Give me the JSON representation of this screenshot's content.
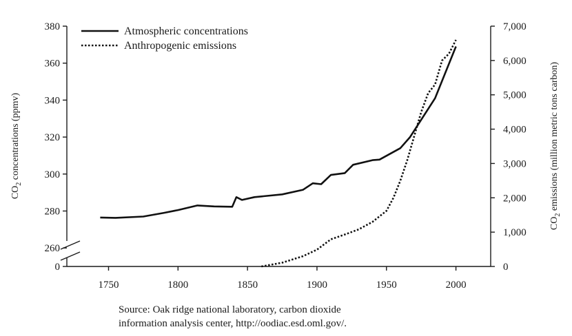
{
  "chart_data": {
    "type": "line",
    "x_ticks": [
      "1750",
      "1800",
      "1850",
      "1900",
      "1950",
      "2000"
    ],
    "xlim": [
      1720,
      2025
    ],
    "left_axis": {
      "label_main": "CO",
      "label_sub": "2",
      "label_rest": " concentrations (ppmv)",
      "ticks": [
        "260",
        "280",
        "300",
        "320",
        "340",
        "360",
        "380"
      ],
      "bottom_tick": "0",
      "range": [
        250,
        380
      ],
      "broken": true
    },
    "right_axis": {
      "label_main": "CO",
      "label_sub": "2",
      "label_rest": " emissions (million metric tons carbon)",
      "ticks": [
        "0",
        "1,000",
        "2,000",
        "3,000",
        "4,000",
        "5,000",
        "6,000",
        "7,000"
      ],
      "range": [
        0,
        7000
      ]
    },
    "series": [
      {
        "name": "Atmospheric concentrations",
        "style": "solid",
        "axis": "left",
        "x": [
          1744,
          1755,
          1775,
          1790,
          1800,
          1814,
          1826,
          1839,
          1842,
          1846,
          1855,
          1875,
          1890,
          1897,
          1903,
          1910,
          1920,
          1926,
          1940,
          1945,
          1960,
          1967,
          1985,
          2000
        ],
        "y": [
          276.5,
          276.3,
          277,
          279,
          280.5,
          283,
          282.5,
          282.3,
          287.5,
          286,
          287.5,
          289,
          291.5,
          295,
          294.5,
          299.5,
          300.5,
          305,
          307.5,
          307.8,
          314,
          320,
          341,
          369
        ]
      },
      {
        "name": "Anthropogenic emissions",
        "style": "dotted",
        "axis": "right",
        "x": [
          1860,
          1875,
          1890,
          1900,
          1910,
          1920,
          1930,
          1940,
          1950,
          1955,
          1960,
          1965,
          1970,
          1975,
          1980,
          1985,
          1990,
          1995,
          2000
        ],
        "y": [
          0,
          110,
          300,
          490,
          790,
          930,
          1080,
          1300,
          1620,
          2000,
          2500,
          3100,
          3800,
          4500,
          5050,
          5300,
          6000,
          6200,
          6600
        ]
      }
    ]
  },
  "source_lines": [
    "Source: Oak ridge national laboratory, carbon dioxide",
    "information analysis center, http://oodiac.esd.oml.gov/."
  ]
}
